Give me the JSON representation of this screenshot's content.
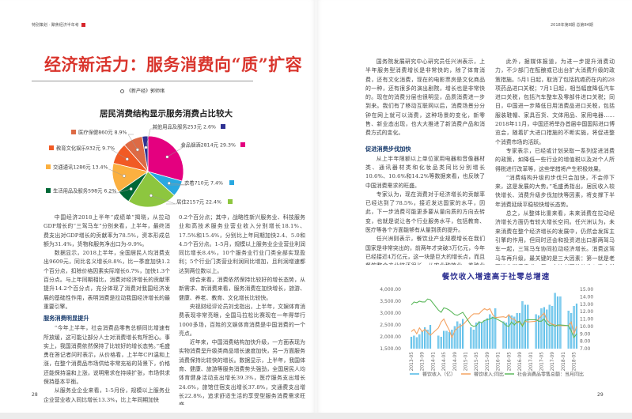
{
  "left_page": {
    "section_header": "特别策划 · 聚焦经济半年考",
    "title": "经济新活力：服务消费向“质”扩容",
    "byline": "《新产经》郭师绪",
    "page_number": "28",
    "columns": [
      {
        "paragraphs": [
          "中国经济2018上半年“成绩单”揭晓，从拉动GDP增长的“三驾马车”分别来看，上半年，最终消费支出对GDP增长的贡献率为78.5%，资本形成总额为31.4%，货物和服务净出口为-9.9%。",
          "数据显示，2018上半年，全国居民人均消费支出9609元，同比名义增长8.8%，比一季度加快1.2个百分点，扣除价格因素实际增长6.7%，加快1.3个百分点。与上年同期相比，消费对经济增长的贡献率提升14.2个百分点，充分体现了消费对我国经济发展的基础性作用，表明消费是拉动我国经济增长的最重要引擎。"
        ],
        "heading": "服务消费明显提升",
        "paragraphs_after": [
          "“今年上半年，社会消费品零售总额同比增速有所放缓，这可能让部分人士对消费增长有所担心。事实上，我国消费依然保持了比较好的增长态势。”毛盛勇在答记者问时表示，从价格看，上半年CPI温和上涨，在整个消费品市场供给非常充裕的背景下，价格还能保持温和上涨，说明需求在持续扩张，市场供求保持基本平衡。",
          "从服务业企业来看，1-5月份，规模以上服务业企业营业收入同比增长13.3%，比上年同期加快"
        ]
      },
      {
        "paragraphs": [
          "0.2个百分点；其中，战略性新兴服务业、科技服务业和高技术服务业营业收入分别增长18.1%、17.5%和15.4%，分别比上年同期加快2.4、5.0和4.5个百分点。1-5月，规模以上服务业企业营业利润同比增长8.4%，10个服务业行业门类全部实现盈利；5个行业门类营业利润同比增加，且利润增速都达到两位数以上。",
          "综合来看，消费依然保持比较好的增长态势，从新需求、新消费来看，服务消费在加快增长，旅游、健康、养老、教育、文化增长比较快。",
          "央视财经评论员刘戈指出，上半年，文娱体育消费表现非常亮眼，全国马拉松比赛现在一年得举行1000多场，百姓的文娱体育消费是中国消费的一个亮点。",
          "近年来，中国消费结构加快升级，一方面表现为实物消费呈升级类商品增长速度加快，另一方面服务消费保持比较快的增长。数据显示，上半年，我国体育、健康、旅游等服务消费势头强劲，全国居民人均体育健身活动支出增长39.3%，医疗服务支出增长24.6%，旅馆住宿支出增长37.8%，交通费支出增长22.8%，追求舒适生活的享受型服务消费需求旺盛。"
        ]
      }
    ]
  },
  "right_page": {
    "issue_header": "2018年第8期 总第84期",
    "page_number": "29",
    "logo_text": "NE",
    "columns": [
      {
        "paragraphs": [
          "国务院发展研究中心研究员任兴洲表示，上半年服务型消费增长是非常快的，除了体育消费，还有文化消费，现在的电影票房是文化商品的一种，还有很多的演出剧院，增长也是非常快的。现在的消费分层也很明显，品质消费进一步到来。我们有了移动互联网以后，消费场景分分钟在网上就可以消费，这种场景的变化，新零售、新业态出现，也大大推进了新消费产品和消费方式的变化。"
        ],
        "heading": "促进消费步伐加快",
        "paragraphs_after": [
          "从上半年限额以上单位家用电器和音像器材类、通讯器材类和化妆品类同比分别增长10.6%、10.6%和14.2%等数据来看，也反映了中国消费需求的旺盛。",
          "专家认为，现在消费对于经济增长的贡献率已经达到了78.5%，接近发达国家的水平，因此，下一步消费可能更多要从量向质的方向去转变，也就是说让各个行业服务水平，包括教育、医疗等各个方面能够有从量到质的提升。",
          "任兴洲则表示，餐饮业产业规模增长在我们国家是非常突出的，前两年才突破3万亿元，今年已经接近4万亿元，这一块是巨大的增长点，而且餐饮整个产业链还很长，从农业种植业、养殖业再到运输物流、加工零售，再到外卖整个一条产业链发展起来，再加上很多中央厨房的发展，所以这个巨大的产业链带动了消费的增长，也满足了人们日益增长的消费需求。"
        ]
      },
      {
        "paragraphs": [
          "此外，据媒体报道，为进一步提升消费动力，不少部门在酝酿或已出台扩大消费升级的政策措施。5月1日起，取消了包括抗癌药在内的28项药品进口关税；7月1日起，相当幅度降低汽车进口关税，包括汽车整车及零部件进口关税；同日，中国进一步降低日用消费品进口关税，包括服装鞋帽、家具百货、文体用品、家用电器……2018年11月，中国还将举办首届中国国际进口博览会，随着扩大进口措施的不断实施，将促进整个消费市场的活跃。",
          "专家表示，已经或计划采取一系列促进消费的政策，如降低一些行业的增值税以及对个人所得税进行改革等，这些举措将产生积极效果。",
          "“消费结构升级的步伐只会加快，不会停下来，这是发展的大势。”毛盛勇指出，居民收入较快增长、消费升级步伐加快等因素，将支撑下半年消费延续平稳较快增长态势。",
          "总之，从整体比重来看，未来消费在拉动经济增长方面仍有较大增长空间。任兴洲认为，未来消费在整个经济增长的发展中，仍然会发挥主引擎的作用，但同时还会和投资进出口那两驾马车一起，三驾马车协同拉动经济增长。消费这驾马车再升级，最关键的是三大因素：第一就是老百姓的消费需求；第二个让老百姓的收入稳定增长可支付，有支付能力；第三就是供给侧结构性改革跟上，有老百姓需要的产品、合适优质的服务，未来消费会继续成为主引擎，拉动经济增长的作用还会进一步发挥。"
        ]
      }
    ]
  },
  "colors": {
    "title_red": "#d9352d",
    "chart_title_blue": "#2e3192",
    "bar_blue": "#4fb8e6",
    "orange_line": "#f4a261",
    "green_line": "#5cb85c"
  },
  "chart_data": [
    {
      "type": "pie",
      "title": "居民消费结构显示服务消费占比较大",
      "slices": [
        {
          "label": "食品烟酒2814元 29.3%",
          "value": 29.3,
          "amount": 2814,
          "color": "#e4007f"
        },
        {
          "label": "衣着710元 7.4%",
          "value": 7.4,
          "amount": 710,
          "color": "#29a8e0"
        },
        {
          "label": "居住2157元 22.4%",
          "value": 22.4,
          "amount": 2157,
          "color": "#8dc63f"
        },
        {
          "label": "生活用品及服务598元 6.2%",
          "value": 6.2,
          "amount": 598,
          "color": "#006837"
        },
        {
          "label": "交通通讯1286元 13.4%",
          "value": 13.4,
          "amount": 1286,
          "color": "#fbb040"
        },
        {
          "label": "教育文化娱乐932元 9.7%",
          "value": 9.7,
          "amount": 932,
          "color": "#f15a24"
        },
        {
          "label": "医疗保健860元 8.9%",
          "value": 8.9,
          "amount": 860,
          "color": "#dd6a45"
        },
        {
          "label": "其他用品及服务253元 2.6%",
          "value": 2.6,
          "amount": 253,
          "color": "#2e3192"
        }
      ]
    },
    {
      "type": "bar+line",
      "title": "餐饮收入增速高于社零总增速",
      "y_left": {
        "range": [
          1500,
          4000
        ],
        "ticks": [
          "1,500.00",
          "2,000.00",
          "2,500.00",
          "3,000.00",
          "3,500.00",
          "4,000.00"
        ]
      },
      "y_right": {
        "range": [
          7,
          15
        ],
        "ticks": [
          "7.00",
          "8.00",
          "9.00",
          "10.00",
          "11.00",
          "12.00",
          "13.00",
          "14.00",
          "15.00"
        ]
      },
      "x_ticks": [
        "2013-05",
        "2013-09",
        "2014-01",
        "2014-05",
        "2014-09",
        "2015-01",
        "2015-05",
        "2015-09",
        "2016-01",
        "2016-05",
        "2016-09",
        "2017-01",
        "2017-05",
        "2017-09",
        "2018-01",
        "2018-05"
      ],
      "x": [
        "2013-05",
        "2013-06",
        "2013-07",
        "2013-08",
        "2013-09",
        "2013-10",
        "2013-11",
        "2013-12",
        "2014-03",
        "2014-04",
        "2014-05",
        "2014-06",
        "2014-07",
        "2014-08",
        "2014-09",
        "2014-10",
        "2014-11",
        "2014-12",
        "2015-03",
        "2015-04",
        "2015-05",
        "2015-06",
        "2015-07",
        "2015-08",
        "2015-09",
        "2015-10",
        "2015-11",
        "2015-12",
        "2016-03",
        "2016-04",
        "2016-05",
        "2016-06",
        "2016-07",
        "2016-08",
        "2016-09",
        "2016-10",
        "2016-11",
        "2016-12",
        "2017-03",
        "2017-04",
        "2017-05",
        "2017-06",
        "2017-07",
        "2017-08",
        "2017-09",
        "2017-10",
        "2017-11",
        "2017-12",
        "2018-03",
        "2018-04",
        "2018-05",
        "2018-06"
      ],
      "series": [
        {
          "name": "餐饮收入（亿）",
          "kind": "bar",
          "axis": "left",
          "color": "#4fb8e6",
          "values": [
            2000,
            2050,
            1980,
            2100,
            2250,
            2400,
            2300,
            2500,
            2050,
            2000,
            2250,
            2250,
            2200,
            2300,
            2450,
            2650,
            2550,
            2750,
            2400,
            2300,
            2600,
            2650,
            2600,
            2700,
            2780,
            2950,
            2850,
            3200,
            2650,
            2600,
            2900,
            2900,
            2850,
            3000,
            3000,
            3500,
            3350,
            3350,
            2950,
            2900,
            3200,
            3250,
            3150,
            3350,
            3300,
            3850,
            3700,
            3700,
            3100,
            3000,
            3300,
            3400
          ]
        },
        {
          "name": "餐饮收入:同比",
          "kind": "line",
          "axis": "right",
          "color": "#f4a261",
          "values": [
            9.3,
            9.6,
            9.0,
            9.8,
            9.3,
            9.6,
            9.2,
            8.8,
            9.8,
            10.6,
            11.0,
            10.2,
            9.5,
            8.5,
            9.4,
            9.8,
            10.0,
            10.2,
            11.4,
            11.7,
            11.7,
            11.7,
            12.1,
            12.4,
            12.2,
            12.4,
            11.6,
            11.2,
            11.3,
            11.2,
            11.6,
            11.0,
            11.0,
            10.5,
            10.6,
            10.2,
            10.7,
            10.6,
            10.7,
            11.0,
            11.4,
            11.8,
            10.9,
            10.5,
            10.3,
            10.2,
            10.1,
            10.1,
            10.1,
            10.6,
            9.0,
            10.0
          ]
        },
        {
          "name": "社会消费品零售总额：当月同比",
          "kind": "line",
          "axis": "right",
          "color": "#5cb85c",
          "values": [
            12.9,
            13.3,
            13.2,
            13.4,
            13.3,
            13.3,
            13.7,
            13.6,
            12.2,
            11.9,
            12.5,
            12.4,
            12.2,
            11.9,
            11.6,
            11.5,
            11.7,
            11.9,
            10.2,
            10.0,
            10.1,
            10.6,
            10.5,
            10.8,
            10.9,
            11.0,
            11.2,
            11.1,
            10.5,
            10.1,
            10.0,
            10.6,
            10.2,
            10.6,
            10.7,
            10.0,
            10.8,
            10.9,
            10.9,
            10.7,
            10.7,
            11.0,
            10.4,
            10.1,
            10.2,
            10.0,
            10.2,
            10.2,
            10.1,
            9.4,
            8.5,
            9.0
          ]
        }
      ],
      "legend": "bottom"
    }
  ]
}
